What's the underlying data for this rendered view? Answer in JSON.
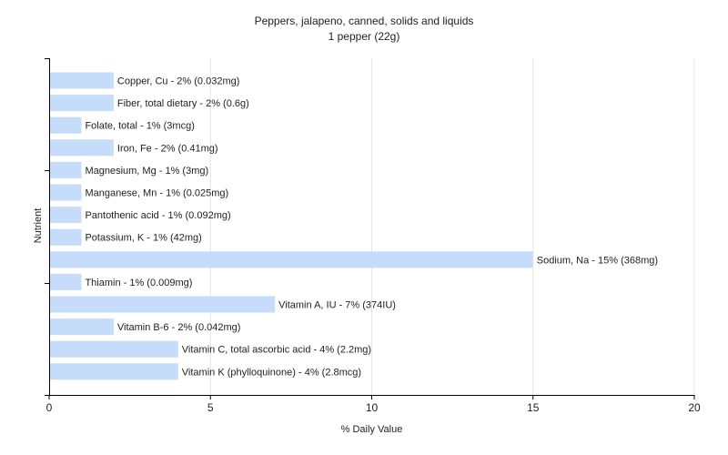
{
  "chart_data": {
    "type": "bar",
    "orientation": "horizontal",
    "title": "Peppers, jalapeno, canned, solids and liquids",
    "subtitle": "1 pepper (22g)",
    "xlabel": "% Daily Value",
    "ylabel": "Nutrient",
    "xlim": [
      0,
      20
    ],
    "xticks": [
      0,
      5,
      10,
      15,
      20
    ],
    "grid": true,
    "bar_color": "#c6dcfb",
    "categories": [
      "Copper, Cu",
      "Fiber, total dietary",
      "Folate, total",
      "Iron, Fe",
      "Magnesium, Mg",
      "Manganese, Mn",
      "Pantothenic acid",
      "Potassium, K",
      "Sodium, Na",
      "Thiamin",
      "Vitamin A, IU",
      "Vitamin B-6",
      "Vitamin C, total ascorbic acid",
      "Vitamin K (phylloquinone)"
    ],
    "values": [
      2,
      2,
      1,
      2,
      1,
      1,
      1,
      1,
      15,
      1,
      7,
      2,
      4,
      4
    ],
    "labels": [
      "Copper, Cu - 2% (0.032mg)",
      "Fiber, total dietary - 2% (0.6g)",
      "Folate, total - 1% (3mcg)",
      "Iron, Fe - 2% (0.41mg)",
      "Magnesium, Mg - 1% (3mg)",
      "Manganese, Mn - 1% (0.025mg)",
      "Pantothenic acid - 1% (0.092mg)",
      "Potassium, K - 1% (42mg)",
      "Sodium, Na - 15% (368mg)",
      "Thiamin - 1% (0.009mg)",
      "Vitamin A, IU - 7% (374IU)",
      "Vitamin B-6 - 2% (0.042mg)",
      "Vitamin C, total ascorbic acid - 4% (2.2mg)",
      "Vitamin K (phylloquinone) - 4% (2.8mcg)"
    ]
  }
}
